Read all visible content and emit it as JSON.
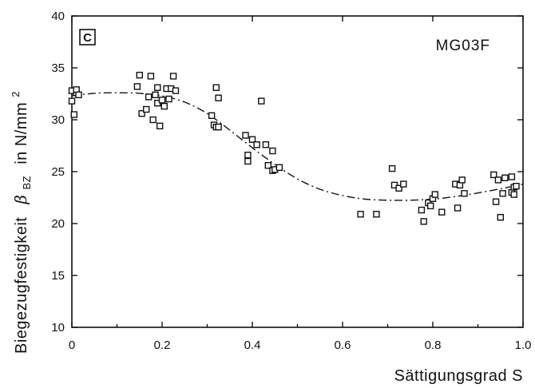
{
  "chart_data": {
    "type": "scatter",
    "panel_label": "C",
    "series_label": "MG03F",
    "xlabel": "Sättigungsgrad  S",
    "ylabel_main": "Biegezugfestigkeit",
    "ylabel_symbol": "β",
    "ylabel_subscript": "BZ",
    "ylabel_unit": "in  N/mm",
    "ylabel_unit_sup": "2",
    "xlim": [
      0,
      1.0
    ],
    "ylim": [
      10,
      40
    ],
    "xticks": [
      0,
      0.2,
      0.4,
      0.6,
      0.8,
      1.0
    ],
    "xtick_labels": [
      "0",
      "0.2",
      "0.4",
      "0.6",
      "0.8",
      "1.0"
    ],
    "yticks": [
      10,
      15,
      20,
      25,
      30,
      35,
      40
    ],
    "ytick_labels": [
      "10",
      "15",
      "20",
      "25",
      "30",
      "35",
      "40"
    ],
    "grid": false,
    "legend": "none",
    "points": [
      [
        0.0,
        32.8
      ],
      [
        0.0,
        31.8
      ],
      [
        0.005,
        30.5
      ],
      [
        0.01,
        32.6
      ],
      [
        0.01,
        32.9
      ],
      [
        0.015,
        32.4
      ],
      [
        0.145,
        33.2
      ],
      [
        0.15,
        34.3
      ],
      [
        0.155,
        30.6
      ],
      [
        0.165,
        31.0
      ],
      [
        0.17,
        32.2
      ],
      [
        0.175,
        34.2
      ],
      [
        0.18,
        30.0
      ],
      [
        0.185,
        32.4
      ],
      [
        0.19,
        31.6
      ],
      [
        0.19,
        33.1
      ],
      [
        0.195,
        29.4
      ],
      [
        0.2,
        31.9
      ],
      [
        0.205,
        31.3
      ],
      [
        0.21,
        33.0
      ],
      [
        0.215,
        32.0
      ],
      [
        0.22,
        33.0
      ],
      [
        0.225,
        34.2
      ],
      [
        0.23,
        32.8
      ],
      [
        0.31,
        30.4
      ],
      [
        0.315,
        29.5
      ],
      [
        0.32,
        33.1
      ],
      [
        0.32,
        29.3
      ],
      [
        0.325,
        32.1
      ],
      [
        0.325,
        29.3
      ],
      [
        0.385,
        28.5
      ],
      [
        0.39,
        26.6
      ],
      [
        0.39,
        26.0
      ],
      [
        0.4,
        28.1
      ],
      [
        0.41,
        27.6
      ],
      [
        0.42,
        31.8
      ],
      [
        0.43,
        27.6
      ],
      [
        0.435,
        25.6
      ],
      [
        0.445,
        27.0
      ],
      [
        0.445,
        25.1
      ],
      [
        0.45,
        25.2
      ],
      [
        0.46,
        25.4
      ],
      [
        0.64,
        20.9
      ],
      [
        0.675,
        20.9
      ],
      [
        0.71,
        25.3
      ],
      [
        0.715,
        23.7
      ],
      [
        0.725,
        23.4
      ],
      [
        0.735,
        23.8
      ],
      [
        0.775,
        21.3
      ],
      [
        0.78,
        20.2
      ],
      [
        0.79,
        22.0
      ],
      [
        0.795,
        21.7
      ],
      [
        0.8,
        22.4
      ],
      [
        0.805,
        22.8
      ],
      [
        0.82,
        21.1
      ],
      [
        0.85,
        23.8
      ],
      [
        0.855,
        21.5
      ],
      [
        0.86,
        23.7
      ],
      [
        0.865,
        24.2
      ],
      [
        0.87,
        22.9
      ],
      [
        0.935,
        24.7
      ],
      [
        0.94,
        22.1
      ],
      [
        0.945,
        24.2
      ],
      [
        0.95,
        20.6
      ],
      [
        0.955,
        22.9
      ],
      [
        0.96,
        24.4
      ],
      [
        0.975,
        24.5
      ],
      [
        0.975,
        23.0
      ],
      [
        0.98,
        22.8
      ],
      [
        0.98,
        23.5
      ],
      [
        0.985,
        23.6
      ]
    ],
    "fit_curve": [
      [
        0.0,
        32.3
      ],
      [
        0.05,
        32.55
      ],
      [
        0.1,
        32.6
      ],
      [
        0.15,
        32.55
      ],
      [
        0.2,
        32.3
      ],
      [
        0.25,
        31.7
      ],
      [
        0.3,
        30.6
      ],
      [
        0.35,
        29.0
      ],
      [
        0.4,
        27.3
      ],
      [
        0.45,
        25.7
      ],
      [
        0.5,
        24.3
      ],
      [
        0.55,
        23.3
      ],
      [
        0.6,
        22.7
      ],
      [
        0.65,
        22.35
      ],
      [
        0.7,
        22.25
      ],
      [
        0.75,
        22.25
      ],
      [
        0.8,
        22.35
      ],
      [
        0.85,
        22.6
      ],
      [
        0.9,
        22.95
      ],
      [
        0.95,
        23.35
      ],
      [
        1.0,
        23.8
      ]
    ]
  }
}
